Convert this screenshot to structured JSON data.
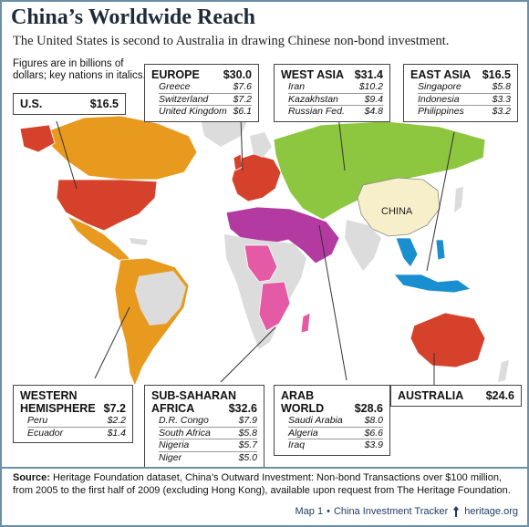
{
  "header": {
    "title": "China’s Worldwide Reach",
    "subtitle": "The United States is second to Australia in drawing Chinese non-bond investment."
  },
  "note": "Figures are in billions of dollars; key nations in italics.",
  "map_label_china": "CHINA",
  "regions": {
    "us": {
      "name": "U.S.",
      "total": "$16.5"
    },
    "europe": {
      "name": "EUROPE",
      "total": "$30.0",
      "rows": [
        {
          "country": "Greece",
          "value": "$7.6"
        },
        {
          "country": "Switzerland",
          "value": "$7.2"
        },
        {
          "country": "United Kingdom",
          "value": "$6.1"
        }
      ]
    },
    "west_asia": {
      "name": "WEST ASIA",
      "total": "$31.4",
      "rows": [
        {
          "country": "Iran",
          "value": "$10.2"
        },
        {
          "country": "Kazakhstan",
          "value": "$9.4"
        },
        {
          "country": "Russian Fed.",
          "value": "$4.8"
        }
      ]
    },
    "east_asia": {
      "name": "EAST ASIA",
      "total": "$16.5",
      "rows": [
        {
          "country": "Singapore",
          "value": "$5.8"
        },
        {
          "country": "Indonesia",
          "value": "$3.3"
        },
        {
          "country": "Philippines",
          "value": "$3.2"
        }
      ]
    },
    "western_hemisphere": {
      "name1": "WESTERN",
      "name2": "HEMISPHERE",
      "total": "$7.2",
      "rows": [
        {
          "country": "Peru",
          "value": "$2.2"
        },
        {
          "country": "Ecuador",
          "value": "$1.4"
        }
      ]
    },
    "sub_saharan_africa": {
      "name1": "SUB-SAHARAN",
      "name2": "AFRICA",
      "total": "$32.6",
      "rows": [
        {
          "country": "D.R. Congo",
          "value": "$7.9"
        },
        {
          "country": "South Africa",
          "value": "$5.8"
        },
        {
          "country": "Nigeria",
          "value": "$5.7"
        },
        {
          "country": "Niger",
          "value": "$5.0"
        }
      ]
    },
    "arab_world": {
      "name1": "ARAB",
      "name2": "WORLD",
      "total": "$28.6",
      "rows": [
        {
          "country": "Saudi Arabia",
          "value": "$8.0"
        },
        {
          "country": "Algeria",
          "value": "$6.6"
        },
        {
          "country": "Iraq",
          "value": "$3.9"
        }
      ]
    },
    "australia": {
      "name": "AUSTRALIA",
      "total": "$24.6"
    }
  },
  "colors": {
    "us": "#d6412b",
    "western_hemisphere": "#e89a1f",
    "europe": "#d6412b",
    "west_asia": "#8dc63f",
    "arab_world": "#b23aa1",
    "sub_saharan_africa": "#e45aa4",
    "east_asia": "#1a8fd0",
    "australia": "#d6412b",
    "china": "#f7efc9",
    "other": "#dcdcdc"
  },
  "source": {
    "label": "Source:",
    "text": "Heritage Foundation dataset, China’s Outward Investment: Non-bond Transactions over $100 million, from 2005 to the first half of 2009 (excluding Hong Kong), available upon request from The Heritage Foundation."
  },
  "credit": {
    "map": "Map 1",
    "sep": "•",
    "tracker": "China Investment Tracker",
    "site": "heritage.org"
  }
}
